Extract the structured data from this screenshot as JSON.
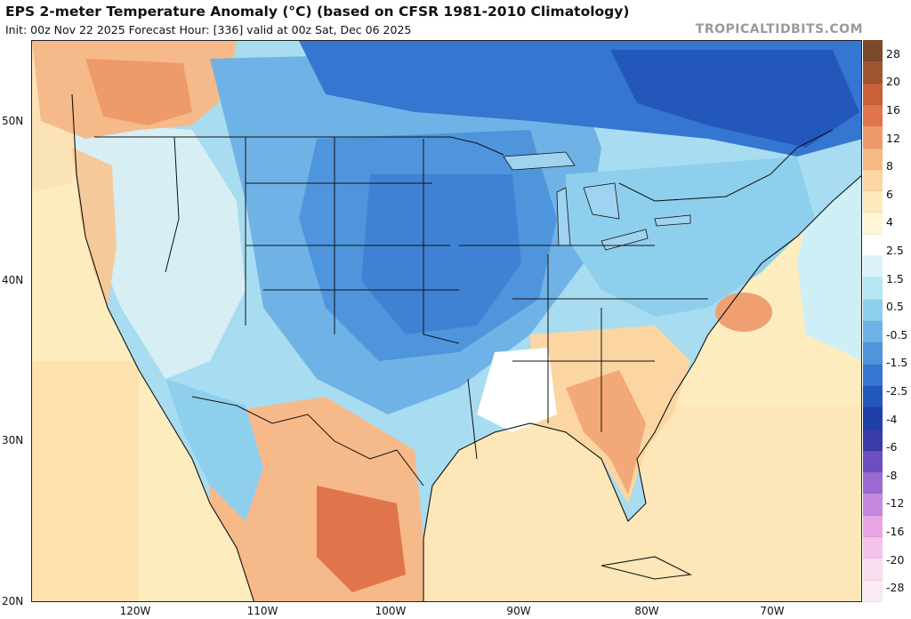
{
  "header": {
    "title": "EPS 2-meter Temperature Anomaly (°C) (based on CFSR 1981-2010 Climatology)",
    "subtitle": "Init: 00z Nov 22 2025   Forecast Hour: [336]   valid at 00z Sat, Dec 06 2025",
    "brand": "TROPICALTIDBITS.COM"
  },
  "axes": {
    "lat_labels": [
      "50N",
      "40N",
      "30N",
      "20N"
    ],
    "lon_labels": [
      "120W",
      "110W",
      "100W",
      "90W",
      "80W",
      "70W"
    ]
  },
  "colorbar": {
    "labels": [
      "28",
      "20",
      "16",
      "12",
      "8",
      "6",
      "4",
      "2.5",
      "1.5",
      "0.5",
      "-0.5",
      "-1.5",
      "-2.5",
      "-4",
      "-6",
      "-8",
      "-12",
      "-16",
      "-20",
      "-28"
    ],
    "colors": [
      "#7b4a2a",
      "#a05530",
      "#c8603a",
      "#e0754b",
      "#ee9a6a",
      "#f6b985",
      "#fbd6a3",
      "#fde9bc",
      "#fff6d6",
      "#ffffff",
      "#d9f3f8",
      "#b6e6f3",
      "#8fcfee",
      "#6fb3e6",
      "#4f95dc",
      "#3576d0",
      "#2457bc",
      "#1e3fa8",
      "#3a3aa8",
      "#6b4fc2",
      "#9a6ad0",
      "#c488dc",
      "#e8a6e4",
      "#f3c3ea",
      "#f8ddf0",
      "#fbebf4"
    ]
  },
  "map": {
    "region": "Contiguous United States, southern Canada, Mexico, Gulf of Mexico and western Atlantic",
    "valid_time": "00z Sat, Dec 06 2025"
  }
}
